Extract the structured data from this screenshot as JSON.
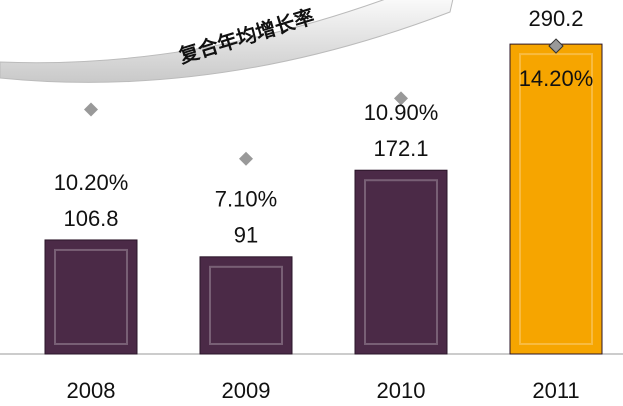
{
  "chart_data": {
    "type": "bar",
    "annotation": "复合年均增长率",
    "categories": [
      "2008",
      "2009",
      "2010",
      "2011"
    ],
    "series": [
      {
        "name": "value",
        "values": [
          106.8,
          91,
          172.1,
          290.2
        ],
        "colors": [
          "#4b2a47",
          "#4b2a47",
          "#4b2a47",
          "#f6a500"
        ]
      },
      {
        "name": "growth",
        "axis": "y2",
        "color": "#999999",
        "values": [
          10.2,
          7.1,
          10.9,
          14.2
        ],
        "value_labels": [
          "10.20%",
          "7.10%",
          "10.90%",
          "14.20%"
        ]
      }
    ],
    "ylim": [
      0,
      331.5
    ],
    "y2lim": [
      -5.2,
      17.1
    ]
  }
}
